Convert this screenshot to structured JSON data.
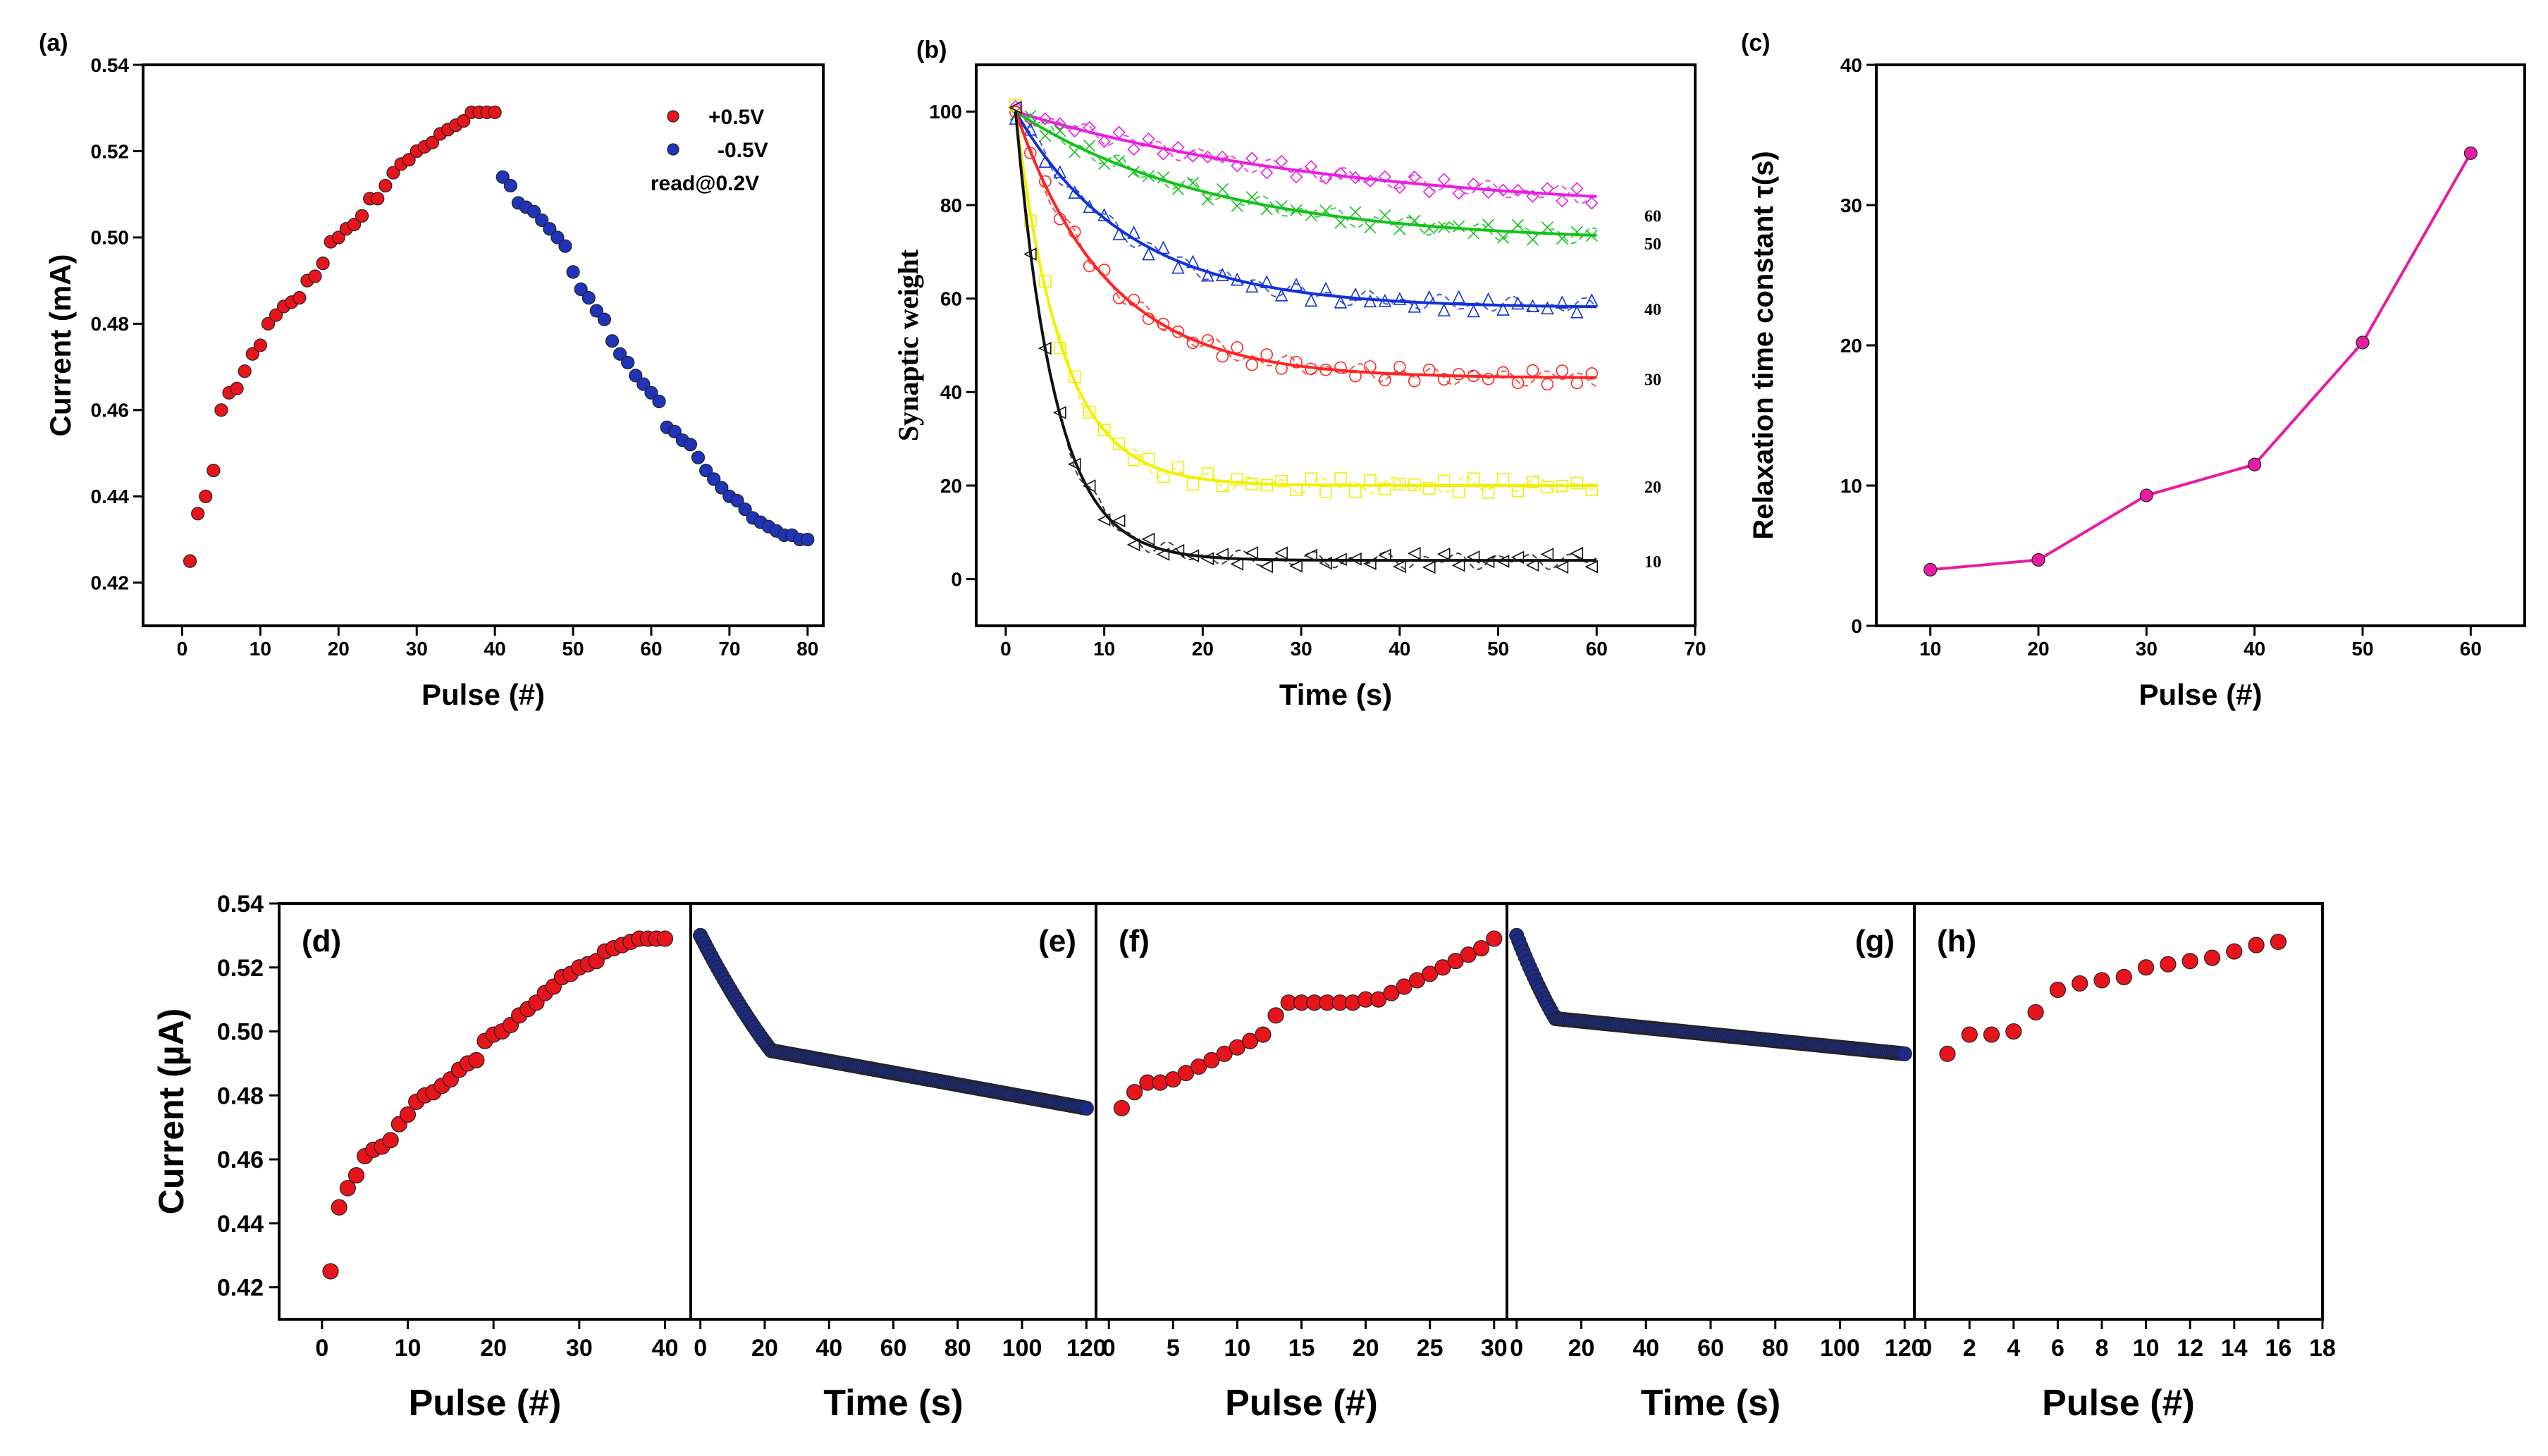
{
  "chart_data": [
    {
      "id": "a",
      "panel_label": "(a)",
      "type": "scatter",
      "xlabel": "Pulse (#)",
      "ylabel": "Current (mA)",
      "xlim": [
        -5,
        82
      ],
      "ylim": [
        0.41,
        0.54
      ],
      "xticks": [
        0,
        10,
        20,
        30,
        40,
        50,
        60,
        70,
        80
      ],
      "yticks": [
        0.42,
        0.44,
        0.46,
        0.48,
        0.5,
        0.52,
        0.54
      ],
      "legend": [
        "+0.5V",
        "-0.5V",
        "read@0.2V"
      ],
      "series": [
        {
          "name": "+0.5V",
          "color": "#e8141c",
          "x": [
            1,
            2,
            3,
            4,
            5,
            6,
            7,
            8,
            9,
            10,
            11,
            12,
            13,
            14,
            15,
            16,
            17,
            18,
            19,
            20,
            21,
            22,
            23,
            24,
            25,
            26,
            27,
            28,
            29,
            30,
            31,
            32,
            33,
            34,
            35,
            36,
            37,
            38,
            39,
            40
          ],
          "y": [
            0.425,
            0.436,
            0.44,
            0.446,
            0.46,
            0.464,
            0.465,
            0.469,
            0.473,
            0.475,
            0.48,
            0.482,
            0.484,
            0.485,
            0.486,
            0.49,
            0.491,
            0.494,
            0.499,
            0.5,
            0.502,
            0.503,
            0.505,
            0.509,
            0.509,
            0.512,
            0.515,
            0.517,
            0.518,
            0.52,
            0.521,
            0.522,
            0.524,
            0.525,
            0.526,
            0.527,
            0.529,
            0.529,
            0.529,
            0.529
          ]
        },
        {
          "name": "-0.5V",
          "color": "#1f34b8",
          "x": [
            41,
            42,
            43,
            44,
            45,
            46,
            47,
            48,
            49,
            50,
            51,
            52,
            53,
            54,
            55,
            56,
            57,
            58,
            59,
            60,
            61,
            62,
            63,
            64,
            65,
            66,
            67,
            68,
            69,
            70,
            71,
            72,
            73,
            74,
            75,
            76,
            77,
            78,
            79,
            80
          ],
          "y": [
            0.514,
            0.512,
            0.508,
            0.507,
            0.506,
            0.504,
            0.502,
            0.5,
            0.498,
            0.492,
            0.488,
            0.486,
            0.483,
            0.481,
            0.476,
            0.473,
            0.471,
            0.468,
            0.466,
            0.464,
            0.462,
            0.456,
            0.455,
            0.453,
            0.452,
            0.449,
            0.446,
            0.444,
            0.442,
            0.44,
            0.439,
            0.437,
            0.435,
            0.434,
            0.433,
            0.432,
            0.431,
            0.431,
            0.43,
            0.43
          ]
        }
      ]
    },
    {
      "id": "b",
      "panel_label": "(b)",
      "type": "line",
      "xlabel": "Time (s)",
      "ylabel": "Synaptic weight",
      "xlim": [
        -3,
        70
      ],
      "ylim": [
        -10,
        110
      ],
      "xticks": [
        0,
        10,
        20,
        30,
        40,
        50,
        60,
        70
      ],
      "yticks": [
        0,
        20,
        40,
        60,
        80,
        100
      ],
      "series": [
        {
          "name": "60",
          "color": "#e81ee0",
          "tau": 33.7,
          "baseline": 78,
          "marker": "diamond"
        },
        {
          "name": "50",
          "color": "#12c21b",
          "tau": 20.2,
          "baseline": 72,
          "marker": "x"
        },
        {
          "name": "40",
          "color": "#1233d6",
          "tau": 11.5,
          "baseline": 58,
          "marker": "triangle-up"
        },
        {
          "name": "30",
          "color": "#ff2424",
          "tau": 9.3,
          "baseline": 43,
          "marker": "circle"
        },
        {
          "name": "20",
          "color": "#f0f000",
          "tau": 4.7,
          "baseline": 20,
          "marker": "square"
        },
        {
          "name": "10",
          "color": "#111111",
          "tau": 4.0,
          "baseline": 4,
          "marker": "triangle-left"
        }
      ]
    },
    {
      "id": "c",
      "panel_label": "(c)",
      "type": "line",
      "xlabel": "Pulse (#)",
      "ylabel": "Relaxation time constant τ(s)",
      "xlim": [
        5,
        65
      ],
      "ylim": [
        0,
        40
      ],
      "xticks": [
        10,
        20,
        30,
        40,
        50,
        60
      ],
      "yticks": [
        0,
        10,
        20,
        30,
        40
      ],
      "series": [
        {
          "name": "tau",
          "color": "#e81ca0",
          "x": [
            10,
            20,
            30,
            40,
            50,
            60
          ],
          "y": [
            4.0,
            4.7,
            9.3,
            11.5,
            20.2,
            33.7
          ]
        }
      ]
    },
    {
      "id": "bottom",
      "type": "scatter",
      "ylabel": "Current (µA)",
      "ylim": [
        0.41,
        0.54
      ],
      "yticks": [
        0.42,
        0.44,
        0.46,
        0.48,
        0.5,
        0.52,
        0.54
      ],
      "panels": [
        {
          "panel_label": "(d)",
          "xlabel": "Pulse (#)",
          "xlim": [
            -5,
            43
          ],
          "xticks": [
            0,
            10,
            20,
            30,
            40
          ],
          "color": "#e8141c",
          "x": [
            1,
            2,
            3,
            4,
            5,
            6,
            7,
            8,
            9,
            10,
            11,
            12,
            13,
            14,
            15,
            16,
            17,
            18,
            19,
            20,
            21,
            22,
            23,
            24,
            25,
            26,
            27,
            28,
            29,
            30,
            31,
            32,
            33,
            34,
            35,
            36,
            37,
            38,
            39,
            40
          ],
          "y": [
            0.425,
            0.445,
            0.451,
            0.455,
            0.461,
            0.463,
            0.464,
            0.466,
            0.471,
            0.474,
            0.478,
            0.48,
            0.481,
            0.483,
            0.485,
            0.488,
            0.49,
            0.491,
            0.497,
            0.499,
            0.5,
            0.502,
            0.505,
            0.507,
            0.509,
            0.512,
            0.514,
            0.517,
            0.518,
            0.52,
            0.521,
            0.522,
            0.525,
            0.526,
            0.527,
            0.528,
            0.529,
            0.529,
            0.529,
            0.529
          ]
        },
        {
          "panel_label": "(e)",
          "xlabel": "Time (s)",
          "xlim": [
            -3,
            123
          ],
          "xticks": [
            0,
            20,
            40,
            60,
            80,
            100,
            120
          ],
          "color": "#1c2a8a",
          "decay": {
            "t_end": 120,
            "start": 0.53,
            "knee": 0.494,
            "knee_t": 22,
            "end": 0.476
          }
        },
        {
          "panel_label": "(f)",
          "xlabel": "Pulse (#)",
          "xlim": [
            -1,
            31
          ],
          "xticks": [
            0,
            5,
            10,
            15,
            20,
            25,
            30
          ],
          "color": "#e8141c",
          "x": [
            1,
            2,
            3,
            4,
            5,
            6,
            7,
            8,
            9,
            10,
            11,
            12,
            13,
            14,
            15,
            16,
            17,
            18,
            19,
            20,
            21,
            22,
            23,
            24,
            25,
            26,
            27,
            28,
            29,
            30
          ],
          "y": [
            0.476,
            0.481,
            0.484,
            0.484,
            0.485,
            0.487,
            0.489,
            0.491,
            0.493,
            0.495,
            0.497,
            0.499,
            0.505,
            0.509,
            0.509,
            0.509,
            0.509,
            0.509,
            0.509,
            0.51,
            0.51,
            0.512,
            0.514,
            0.516,
            0.518,
            0.52,
            0.522,
            0.524,
            0.526,
            0.529
          ]
        },
        {
          "panel_label": "(g)",
          "xlabel": "Time (s)",
          "xlim": [
            -3,
            123
          ],
          "xticks": [
            0,
            20,
            40,
            60,
            80,
            100,
            120
          ],
          "color": "#1c2a8a",
          "decay": {
            "t_end": 120,
            "start": 0.53,
            "knee": 0.504,
            "knee_t": 12,
            "end": 0.493
          }
        },
        {
          "panel_label": "(h)",
          "xlabel": "Pulse (#)",
          "xlim": [
            -0.5,
            18
          ],
          "xticks": [
            0,
            2,
            4,
            6,
            8,
            10,
            12,
            14,
            16,
            18
          ],
          "color": "#e8141c",
          "x": [
            1,
            2,
            3,
            4,
            5,
            6,
            7,
            8,
            9,
            10,
            11,
            12,
            13,
            14,
            15,
            16
          ],
          "y": [
            0.493,
            0.499,
            0.499,
            0.5,
            0.506,
            0.513,
            0.515,
            0.516,
            0.517,
            0.52,
            0.521,
            0.522,
            0.523,
            0.525,
            0.527,
            0.528
          ]
        }
      ]
    }
  ]
}
